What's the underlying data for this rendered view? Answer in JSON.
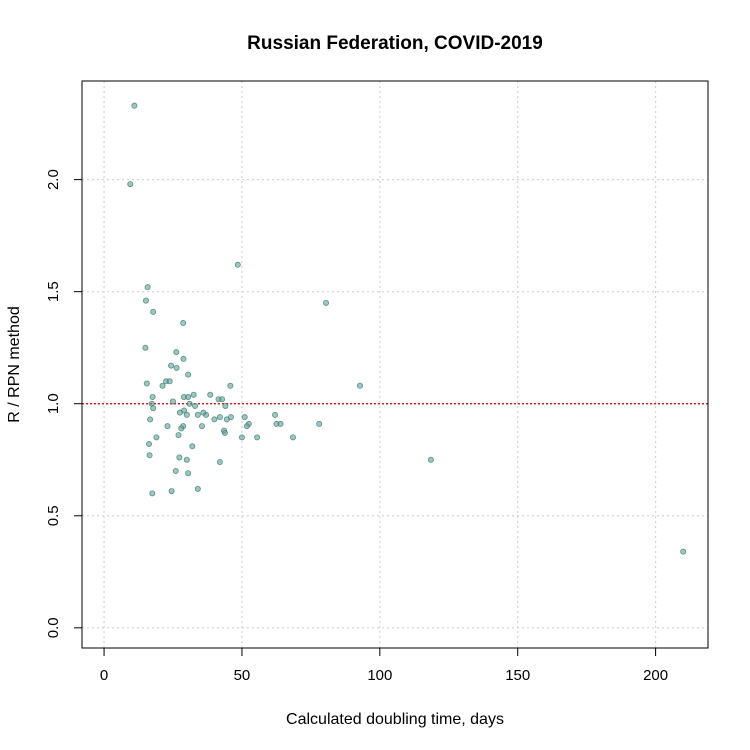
{
  "chart_data": {
    "type": "scatter",
    "title": "Russian Federation, COVID-2019",
    "xlabel": "Calculated doubling time, days",
    "ylabel": "R / RPN method",
    "xlim": [
      -8,
      219
    ],
    "ylim": [
      -0.09,
      2.44
    ],
    "xticks": [
      0,
      50,
      100,
      150,
      200
    ],
    "yticks": [
      0.0,
      0.5,
      1.0,
      1.5,
      2.0
    ],
    "xtick_labels": [
      "0",
      "50",
      "100",
      "150",
      "200"
    ],
    "ytick_labels": [
      "0.0",
      "0.5",
      "1.0",
      "1.5",
      "2.0"
    ],
    "grid": true,
    "reference_line": {
      "y": 1.0,
      "color": "#cc0000",
      "style": "dotted"
    },
    "point_color": "#5f9e94",
    "points": [
      {
        "x": 11.0,
        "y": 2.33
      },
      {
        "x": 9.5,
        "y": 1.98
      },
      {
        "x": 15.8,
        "y": 1.52
      },
      {
        "x": 15.2,
        "y": 1.46
      },
      {
        "x": 17.8,
        "y": 1.41
      },
      {
        "x": 48.5,
        "y": 1.62
      },
      {
        "x": 80.5,
        "y": 1.45
      },
      {
        "x": 28.7,
        "y": 1.36
      },
      {
        "x": 15.0,
        "y": 1.25
      },
      {
        "x": 26.2,
        "y": 1.23
      },
      {
        "x": 28.8,
        "y": 1.2
      },
      {
        "x": 24.3,
        "y": 1.17
      },
      {
        "x": 26.3,
        "y": 1.16
      },
      {
        "x": 30.5,
        "y": 1.13
      },
      {
        "x": 22.5,
        "y": 1.1
      },
      {
        "x": 23.8,
        "y": 1.1
      },
      {
        "x": 15.5,
        "y": 1.09
      },
      {
        "x": 21.2,
        "y": 1.08
      },
      {
        "x": 45.8,
        "y": 1.08
      },
      {
        "x": 92.8,
        "y": 1.08
      },
      {
        "x": 17.6,
        "y": 1.03
      },
      {
        "x": 17.3,
        "y": 1.0
      },
      {
        "x": 17.8,
        "y": 0.98
      },
      {
        "x": 25.0,
        "y": 1.01
      },
      {
        "x": 29.0,
        "y": 1.03
      },
      {
        "x": 30.5,
        "y": 1.03
      },
      {
        "x": 32.5,
        "y": 1.04
      },
      {
        "x": 38.5,
        "y": 1.04
      },
      {
        "x": 41.5,
        "y": 1.02
      },
      {
        "x": 42.8,
        "y": 1.02
      },
      {
        "x": 31.0,
        "y": 1.0
      },
      {
        "x": 33.0,
        "y": 0.99
      },
      {
        "x": 44.0,
        "y": 0.99
      },
      {
        "x": 29.0,
        "y": 0.97
      },
      {
        "x": 27.5,
        "y": 0.96
      },
      {
        "x": 30.0,
        "y": 0.95
      },
      {
        "x": 34.0,
        "y": 0.95
      },
      {
        "x": 37.0,
        "y": 0.95
      },
      {
        "x": 36.0,
        "y": 0.96
      },
      {
        "x": 42.0,
        "y": 0.94
      },
      {
        "x": 40.0,
        "y": 0.93
      },
      {
        "x": 44.5,
        "y": 0.93
      },
      {
        "x": 46.0,
        "y": 0.94
      },
      {
        "x": 51.0,
        "y": 0.94
      },
      {
        "x": 62.0,
        "y": 0.95
      },
      {
        "x": 52.5,
        "y": 0.91
      },
      {
        "x": 51.8,
        "y": 0.9
      },
      {
        "x": 62.5,
        "y": 0.91
      },
      {
        "x": 64.0,
        "y": 0.91
      },
      {
        "x": 78.0,
        "y": 0.91
      },
      {
        "x": 28.7,
        "y": 0.9
      },
      {
        "x": 28.0,
        "y": 0.89
      },
      {
        "x": 23.0,
        "y": 0.9
      },
      {
        "x": 35.5,
        "y": 0.9
      },
      {
        "x": 43.5,
        "y": 0.88
      },
      {
        "x": 43.8,
        "y": 0.87
      },
      {
        "x": 27.0,
        "y": 0.86
      },
      {
        "x": 19.0,
        "y": 0.85
      },
      {
        "x": 50.0,
        "y": 0.85
      },
      {
        "x": 55.5,
        "y": 0.85
      },
      {
        "x": 68.5,
        "y": 0.85
      },
      {
        "x": 16.3,
        "y": 0.82
      },
      {
        "x": 32.0,
        "y": 0.81
      },
      {
        "x": 16.5,
        "y": 0.77
      },
      {
        "x": 27.3,
        "y": 0.76
      },
      {
        "x": 30.0,
        "y": 0.75
      },
      {
        "x": 42.0,
        "y": 0.74
      },
      {
        "x": 118.5,
        "y": 0.75
      },
      {
        "x": 26.0,
        "y": 0.7
      },
      {
        "x": 30.5,
        "y": 0.69
      },
      {
        "x": 34.0,
        "y": 0.62
      },
      {
        "x": 24.5,
        "y": 0.61
      },
      {
        "x": 17.5,
        "y": 0.6
      },
      {
        "x": 210.0,
        "y": 0.34
      },
      {
        "x": 16.7,
        "y": 0.93
      }
    ]
  }
}
